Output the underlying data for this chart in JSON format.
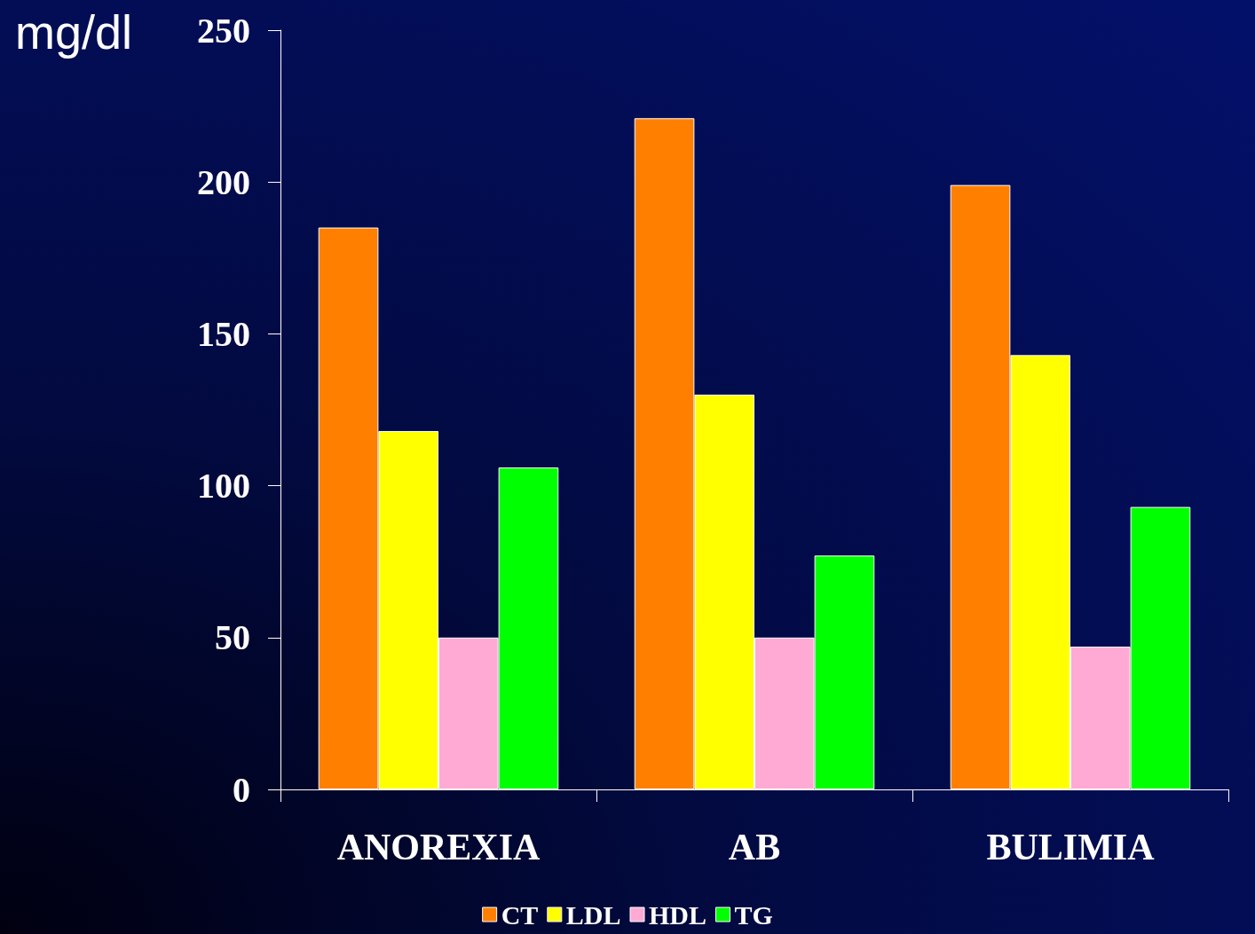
{
  "chart_data": {
    "type": "bar",
    "ylabel": "mg/dl",
    "categories": [
      "ANOREXIA",
      "AB",
      "BULIMIA"
    ],
    "series": [
      {
        "name": "CT",
        "color": "#ff7f00",
        "values": [
          185,
          221,
          199
        ]
      },
      {
        "name": "LDL",
        "color": "#ffff00",
        "values": [
          118,
          130,
          143
        ]
      },
      {
        "name": "HDL",
        "color": "#ffaad4",
        "values": [
          50,
          50,
          47
        ]
      },
      {
        "name": "TG",
        "color": "#00ff00",
        "values": [
          106,
          77,
          93
        ]
      }
    ],
    "ylim": [
      0,
      250
    ],
    "yticks": [
      0,
      50,
      100,
      150,
      200,
      250
    ],
    "grid": false,
    "legend": "bottom"
  }
}
